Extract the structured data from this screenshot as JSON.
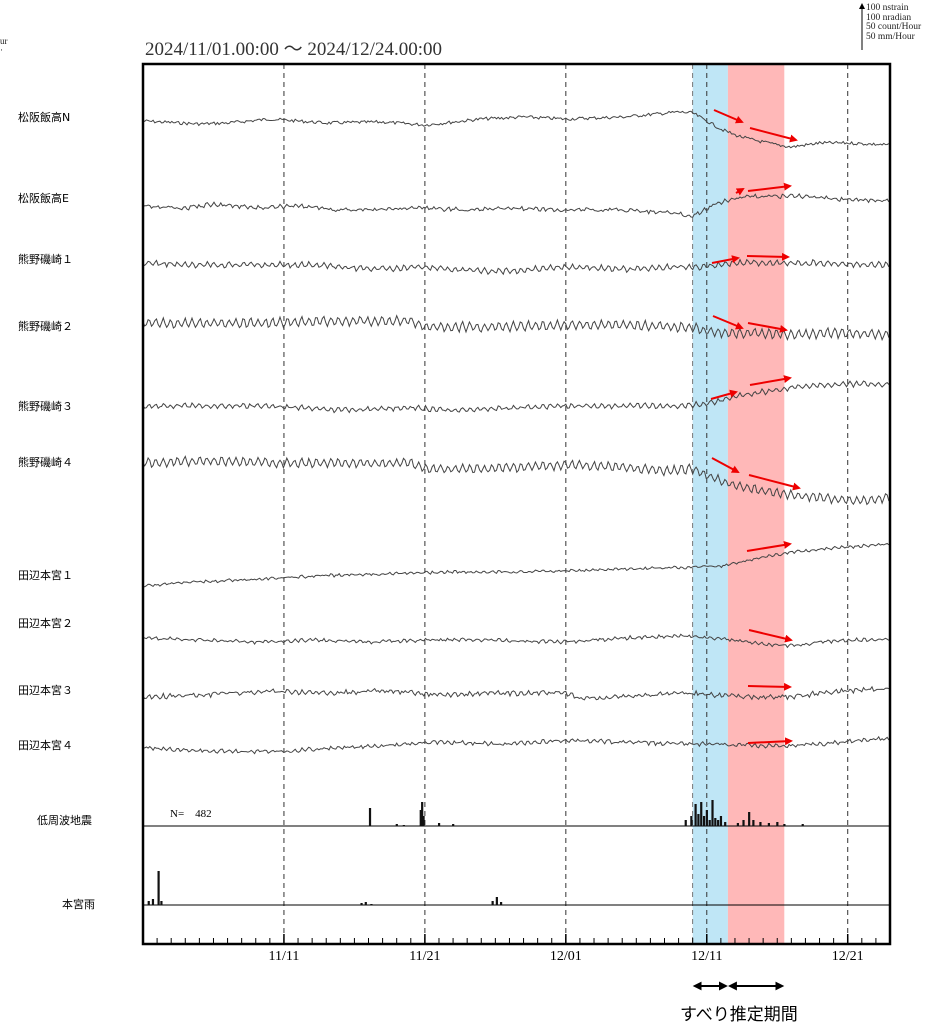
{
  "chart_data": {
    "type": "line",
    "title": "2024/11/01.00:00 〜 2024/12/24.00:00",
    "x_start": "2024-11-01",
    "x_end": "2024-12-24",
    "x_ticks": [
      {
        "date": "2024-11-11",
        "label": "11/11"
      },
      {
        "date": "2024-11-21",
        "label": "11/21"
      },
      {
        "date": "2024-12-01",
        "label": "12/01"
      },
      {
        "date": "2024-12-11",
        "label": "12/11"
      },
      {
        "date": "2024-12-21",
        "label": "12/21"
      }
    ],
    "scale_legend": [
      "100 nstrain",
      "100 nradian",
      "50 count/Hour",
      "50 mm/Hour"
    ],
    "clipped_left_text": [
      "ur",
      "·"
    ],
    "shaded_periods": [
      {
        "start": "2024-12-10",
        "end": "2024-12-12.5",
        "color": "#bfe6f6"
      },
      {
        "start": "2024-12-12.5",
        "end": "2024-12-16.5",
        "color": "#ffb8b8"
      }
    ],
    "series": [
      {
        "name": "松阪飯高N",
        "points": [
          [
            "2024-11-01",
            0
          ],
          [
            "2024-11-05",
            -3
          ],
          [
            "2024-11-07",
            -2
          ],
          [
            "2024-11-10",
            2
          ],
          [
            "2024-11-14",
            -2
          ],
          [
            "2024-11-18",
            -1
          ],
          [
            "2024-11-21",
            -4
          ],
          [
            "2024-11-25",
            2
          ],
          [
            "2024-11-28",
            4
          ],
          [
            "2024-12-01",
            2
          ],
          [
            "2024-12-05",
            4
          ],
          [
            "2024-12-09",
            9
          ],
          [
            "2024-12-10",
            8
          ],
          [
            "2024-12-11",
            0
          ],
          [
            "2024-12-12",
            -8
          ],
          [
            "2024-12-13",
            -14
          ],
          [
            "2024-12-14",
            -18
          ],
          [
            "2024-12-16",
            -24
          ],
          [
            "2024-12-17",
            -26
          ],
          [
            "2024-12-19",
            -22
          ],
          [
            "2024-12-21",
            -22
          ],
          [
            "2024-12-24",
            -24
          ]
        ],
        "noise": 1.6,
        "ripple": 0
      },
      {
        "name": "松阪飯高E",
        "points": [
          [
            "2024-11-01",
            0
          ],
          [
            "2024-11-04",
            -2
          ],
          [
            "2024-11-06",
            2
          ],
          [
            "2024-11-09",
            -2
          ],
          [
            "2024-11-12",
            0
          ],
          [
            "2024-11-15",
            -4
          ],
          [
            "2024-11-18",
            -3
          ],
          [
            "2024-11-21",
            -2
          ],
          [
            "2024-11-24",
            -4
          ],
          [
            "2024-11-27",
            -2
          ],
          [
            "2024-12-01",
            -4
          ],
          [
            "2024-12-05",
            -4
          ],
          [
            "2024-12-08",
            -6
          ],
          [
            "2024-12-10",
            -10
          ],
          [
            "2024-12-11",
            -2
          ],
          [
            "2024-12-12",
            4
          ],
          [
            "2024-12-13",
            8
          ],
          [
            "2024-12-15",
            10
          ],
          [
            "2024-12-18",
            10
          ],
          [
            "2024-12-21",
            6
          ],
          [
            "2024-12-24",
            6
          ]
        ],
        "noise": 1.6,
        "ripple": 1.0
      },
      {
        "name": "熊野磯崎１",
        "points": [
          [
            "2024-11-01",
            0
          ],
          [
            "2024-11-05",
            -2
          ],
          [
            "2024-11-09",
            -2
          ],
          [
            "2024-11-13",
            -2
          ],
          [
            "2024-11-17",
            -6
          ],
          [
            "2024-11-21",
            -4
          ],
          [
            "2024-11-25",
            -8
          ],
          [
            "2024-11-27",
            -8
          ],
          [
            "2024-12-01",
            -4
          ],
          [
            "2024-12-05",
            -6
          ],
          [
            "2024-12-09",
            -4
          ],
          [
            "2024-12-11",
            -4
          ],
          [
            "2024-12-13",
            0
          ],
          [
            "2024-12-16",
            0
          ],
          [
            "2024-12-19",
            0
          ],
          [
            "2024-12-24",
            -2
          ]
        ],
        "noise": 1.4,
        "ripple": 2.2
      },
      {
        "name": "熊野磯崎２",
        "points": [
          [
            "2024-11-01",
            0
          ],
          [
            "2024-11-05",
            0
          ],
          [
            "2024-11-10",
            0
          ],
          [
            "2024-11-14",
            2
          ],
          [
            "2024-11-20",
            2
          ],
          [
            "2024-11-21",
            -4
          ],
          [
            "2024-11-26",
            -4
          ],
          [
            "2024-12-01",
            -2
          ],
          [
            "2024-12-05",
            -2
          ],
          [
            "2024-12-09",
            -4
          ],
          [
            "2024-12-10",
            -4
          ],
          [
            "2024-12-11",
            -8
          ],
          [
            "2024-12-12",
            -10
          ],
          [
            "2024-12-14",
            -10
          ],
          [
            "2024-12-17",
            -12
          ],
          [
            "2024-12-20",
            -10
          ],
          [
            "2024-12-24",
            -12
          ]
        ],
        "noise": 1.4,
        "ripple": 4.2
      },
      {
        "name": "熊野磯崎３",
        "points": [
          [
            "2024-11-01",
            0
          ],
          [
            "2024-11-05",
            0
          ],
          [
            "2024-11-10",
            0
          ],
          [
            "2024-11-15",
            -4
          ],
          [
            "2024-11-20",
            -2
          ],
          [
            "2024-11-23",
            -4
          ],
          [
            "2024-11-27",
            -2
          ],
          [
            "2024-12-01",
            0
          ],
          [
            "2024-12-05",
            0
          ],
          [
            "2024-12-09",
            0
          ],
          [
            "2024-12-11",
            2
          ],
          [
            "2024-12-12",
            6
          ],
          [
            "2024-12-14",
            12
          ],
          [
            "2024-12-16",
            16
          ],
          [
            "2024-12-18",
            20
          ],
          [
            "2024-12-21",
            22
          ],
          [
            "2024-12-24",
            22
          ]
        ],
        "noise": 1.3,
        "ripple": 2.0
      },
      {
        "name": "熊野磯崎４",
        "points": [
          [
            "2024-11-01",
            0
          ],
          [
            "2024-11-05",
            2
          ],
          [
            "2024-11-11",
            0
          ],
          [
            "2024-11-16",
            0
          ],
          [
            "2024-11-20",
            0
          ],
          [
            "2024-11-21",
            -6
          ],
          [
            "2024-11-25",
            -6
          ],
          [
            "2024-12-01",
            -2
          ],
          [
            "2024-12-05",
            -4
          ],
          [
            "2024-12-08",
            -8
          ],
          [
            "2024-12-10",
            -6
          ],
          [
            "2024-12-11",
            -12
          ],
          [
            "2024-12-12",
            -18
          ],
          [
            "2024-12-13",
            -22
          ],
          [
            "2024-12-15",
            -28
          ],
          [
            "2024-12-17",
            -32
          ],
          [
            "2024-12-20",
            -36
          ],
          [
            "2024-12-22",
            -38
          ],
          [
            "2024-12-24",
            -34
          ]
        ],
        "noise": 1.3,
        "ripple": 4.0
      },
      {
        "name": "田辺本宮１",
        "points": [
          [
            "2024-11-01",
            0
          ],
          [
            "2024-11-04",
            4
          ],
          [
            "2024-11-08",
            6
          ],
          [
            "2024-11-13",
            10
          ],
          [
            "2024-11-18",
            12
          ],
          [
            "2024-11-23",
            14
          ],
          [
            "2024-11-28",
            14
          ],
          [
            "2024-12-03",
            16
          ],
          [
            "2024-12-08",
            18
          ],
          [
            "2024-12-12",
            20
          ],
          [
            "2024-12-14",
            26
          ],
          [
            "2024-12-17",
            34
          ],
          [
            "2024-12-20",
            38
          ],
          [
            "2024-12-24",
            42
          ]
        ],
        "noise": 1.0,
        "ripple": 0.8
      },
      {
        "name": "田辺本宮２",
        "points": [
          [
            "2024-11-01",
            0
          ],
          [
            "2024-11-05",
            -2
          ],
          [
            "2024-11-09",
            -4
          ],
          [
            "2024-11-13",
            -2
          ],
          [
            "2024-11-17",
            -4
          ],
          [
            "2024-11-21",
            -2
          ],
          [
            "2024-11-25",
            -2
          ],
          [
            "2024-12-01",
            -4
          ],
          [
            "2024-12-05",
            0
          ],
          [
            "2024-12-09",
            2
          ],
          [
            "2024-12-11",
            0
          ],
          [
            "2024-12-13",
            -2
          ],
          [
            "2024-12-15",
            -6
          ],
          [
            "2024-12-17",
            -8
          ],
          [
            "2024-12-19",
            -4
          ],
          [
            "2024-12-21",
            -2
          ],
          [
            "2024-12-24",
            -2
          ]
        ],
        "noise": 1.2,
        "ripple": 1.0
      },
      {
        "name": "田辺本宮３",
        "points": [
          [
            "2024-11-01",
            0
          ],
          [
            "2024-11-05",
            2
          ],
          [
            "2024-11-10",
            6
          ],
          [
            "2024-11-14",
            4
          ],
          [
            "2024-11-18",
            6
          ],
          [
            "2024-11-22",
            2
          ],
          [
            "2024-11-27",
            4
          ],
          [
            "2024-12-01",
            4
          ],
          [
            "2024-12-02",
            -2
          ],
          [
            "2024-12-05",
            0
          ],
          [
            "2024-12-09",
            4
          ],
          [
            "2024-12-12",
            2
          ],
          [
            "2024-12-14",
            0
          ],
          [
            "2024-12-17",
            0
          ],
          [
            "2024-12-20",
            6
          ],
          [
            "2024-12-24",
            8
          ]
        ],
        "noise": 1.8,
        "ripple": 1.2
      },
      {
        "name": "田辺本宮４",
        "points": [
          [
            "2024-11-01",
            0
          ],
          [
            "2024-11-04",
            -2
          ],
          [
            "2024-11-08",
            -4
          ],
          [
            "2024-11-12",
            -2
          ],
          [
            "2024-11-18",
            2
          ],
          [
            "2024-11-22",
            6
          ],
          [
            "2024-11-27",
            4
          ],
          [
            "2024-12-01",
            8
          ],
          [
            "2024-12-05",
            6
          ],
          [
            "2024-12-09",
            4
          ],
          [
            "2024-12-12",
            4
          ],
          [
            "2024-12-16",
            2
          ],
          [
            "2024-12-19",
            4
          ],
          [
            "2024-12-24",
            10
          ]
        ],
        "noise": 1.5,
        "ripple": 1.0
      }
    ],
    "low_freq_eq": {
      "name": "低周波地震",
      "n_label": "N=    482",
      "bars": [
        [
          "2024-11-17.1",
          18
        ],
        [
          "2024-11-20.7",
          16
        ],
        [
          "2024-11-20.8",
          24
        ],
        [
          "2024-11-20.9",
          10
        ],
        [
          "2024-11-19",
          2
        ],
        [
          "2024-11-19.5",
          1
        ],
        [
          "2024-11-22",
          3
        ],
        [
          "2024-11-23",
          2
        ],
        [
          "2024-12-09.5",
          6
        ],
        [
          "2024-12-09.9",
          10
        ],
        [
          "2024-12-10.2",
          22
        ],
        [
          "2024-12-10.4",
          12
        ],
        [
          "2024-12-10.6",
          24
        ],
        [
          "2024-12-10.8",
          10
        ],
        [
          "2024-12-11.0",
          16
        ],
        [
          "2024-12-11.2",
          6
        ],
        [
          "2024-12-11.4",
          26
        ],
        [
          "2024-12-11.6",
          8
        ],
        [
          "2024-12-11.8",
          6
        ],
        [
          "2024-12-12.0",
          10
        ],
        [
          "2024-12-12.3",
          4
        ],
        [
          "2024-12-13.2",
          3
        ],
        [
          "2024-12-13.6",
          6
        ],
        [
          "2024-12-14.0",
          14
        ],
        [
          "2024-12-14.3",
          6
        ],
        [
          "2024-12-14.8",
          4
        ],
        [
          "2024-12-15.4",
          3
        ],
        [
          "2024-12-16.0",
          4
        ],
        [
          "2024-12-16.5",
          2
        ],
        [
          "2024-12-17.8",
          2
        ]
      ]
    },
    "rain": {
      "name": "本宮雨",
      "bars": [
        [
          "2024-11-01.4",
          4
        ],
        [
          "2024-11-01.7",
          6
        ],
        [
          "2024-11-02.1",
          34
        ],
        [
          "2024-11-02.3",
          4
        ],
        [
          "2024-11-16.5",
          2
        ],
        [
          "2024-11-16.8",
          3
        ],
        [
          "2024-11-17.2",
          1
        ],
        [
          "2024-11-25.8",
          4
        ],
        [
          "2024-11-26.1",
          8
        ],
        [
          "2024-11-26.4",
          3
        ]
      ]
    }
  },
  "footer": {
    "label": "すべり推定期間"
  }
}
